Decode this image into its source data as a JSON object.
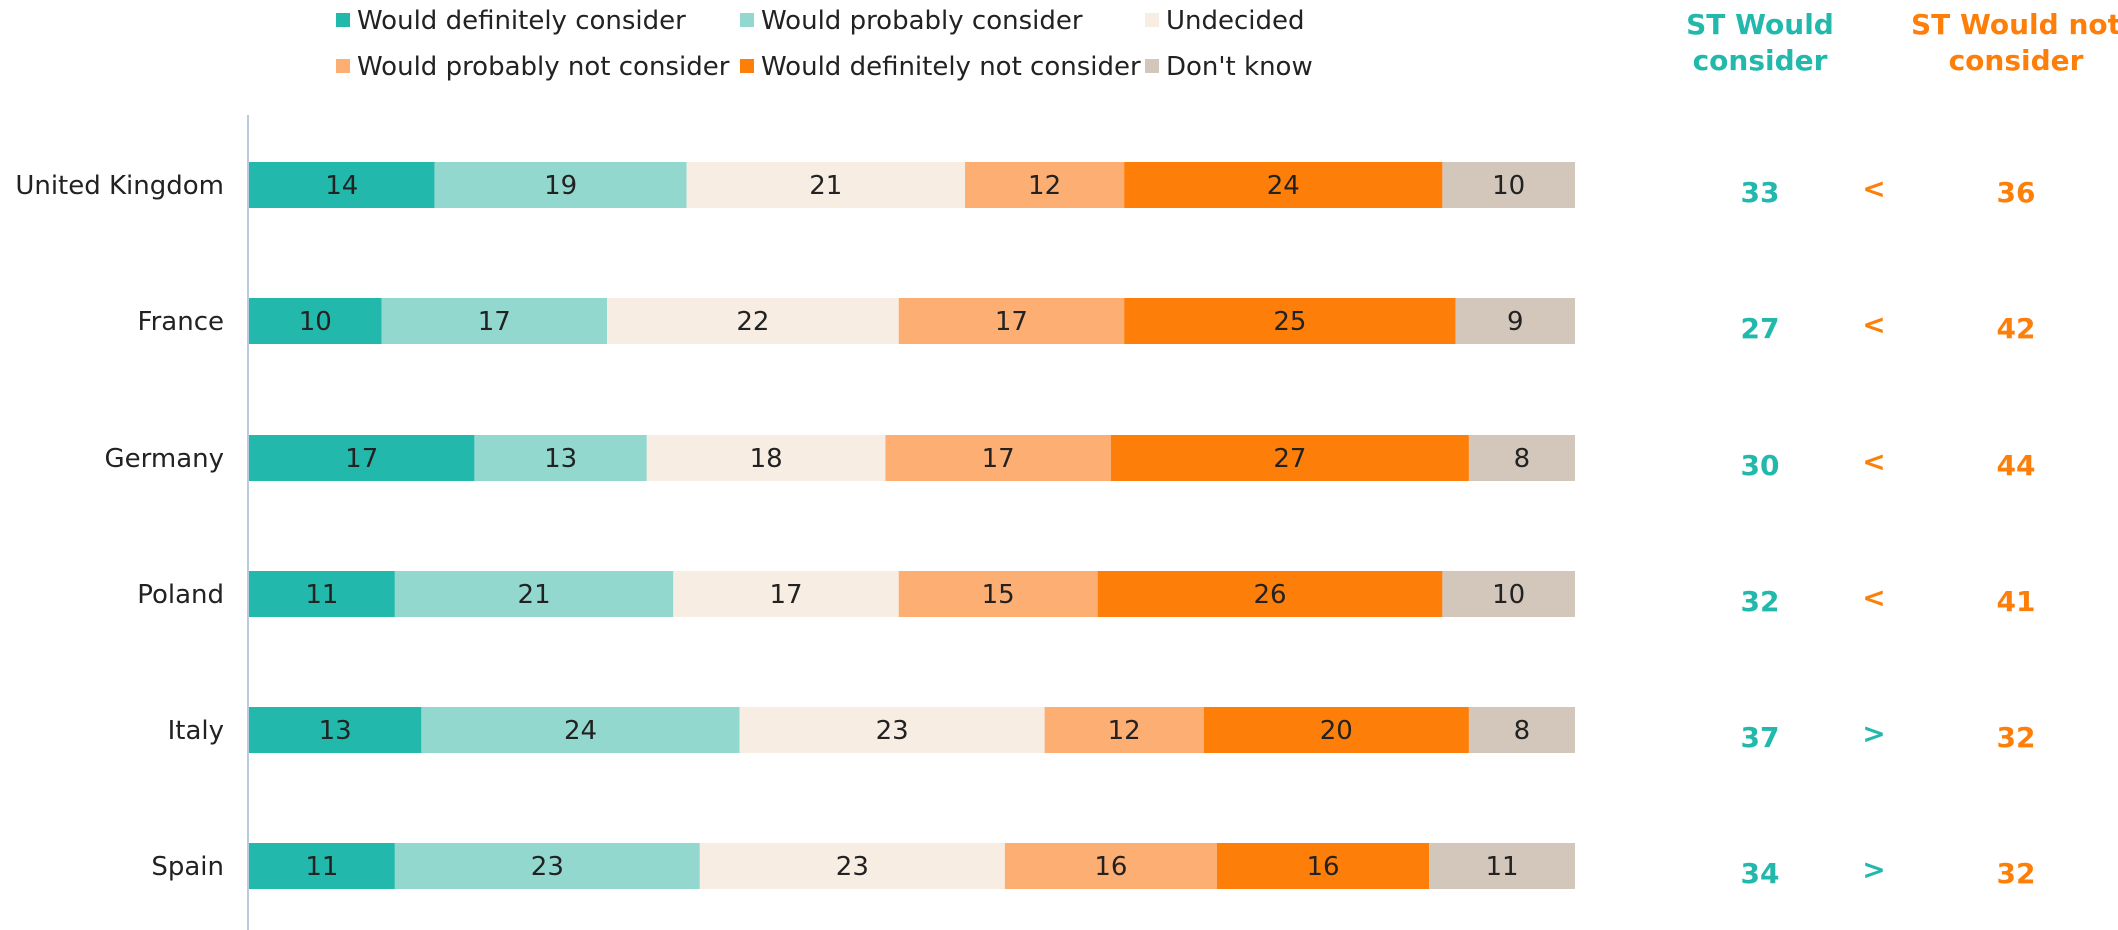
{
  "chart_data": {
    "type": "bar",
    "stacked": true,
    "orientation": "horizontal",
    "categories": [
      "United Kingdom",
      "France",
      "Germany",
      "Poland",
      "Italy",
      "Spain"
    ],
    "series": [
      {
        "name": "Would definitely consider",
        "color": "#22b9ac",
        "values": [
          14,
          10,
          17,
          11,
          13,
          11
        ]
      },
      {
        "name": "Would probably consider",
        "color": "#93d8cf",
        "values": [
          19,
          17,
          13,
          21,
          24,
          23
        ]
      },
      {
        "name": "Undecided",
        "color": "#f8ede3",
        "values": [
          21,
          22,
          18,
          17,
          23,
          23
        ]
      },
      {
        "name": "Would probably not consider",
        "color": "#fdae72",
        "values": [
          12,
          17,
          17,
          15,
          12,
          16
        ]
      },
      {
        "name": "Would definitely not consider",
        "color": "#fd7f0a",
        "values": [
          24,
          25,
          27,
          26,
          20,
          16
        ]
      },
      {
        "name": "Don't know",
        "color": "#d3c7bc",
        "values": [
          10,
          9,
          8,
          10,
          8,
          11
        ]
      }
    ],
    "summary": {
      "consider_header": "ST Would consider",
      "not_consider_header": "ST Would not consider",
      "consider_color": "#22b9ac",
      "not_consider_color": "#fd7f0a",
      "consider": [
        33,
        27,
        30,
        32,
        37,
        34
      ],
      "comparison": [
        "<",
        "<",
        "<",
        "<",
        ">",
        ">"
      ],
      "not_consider": [
        36,
        42,
        44,
        41,
        32,
        32
      ]
    },
    "legend_position": "top",
    "xlim": [
      0,
      100
    ]
  }
}
